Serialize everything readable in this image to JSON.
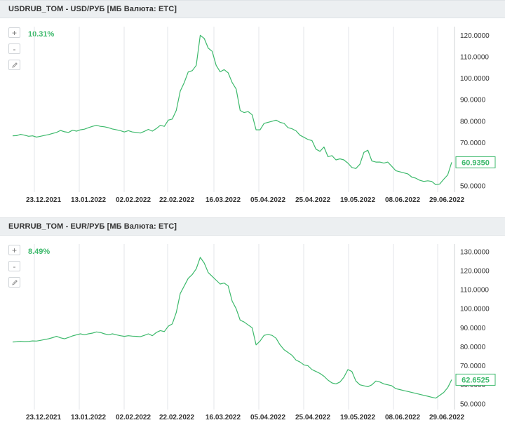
{
  "charts": [
    {
      "title": "USDRUB_TOM - USD/РУБ [МБ Валюта: ETC]",
      "change": "10.31%",
      "last_label": "60.9350",
      "controls": {
        "zoom_in": "+",
        "zoom_out": "-",
        "edit_icon": "pencil-icon"
      }
    },
    {
      "title": "EURRUB_TOM - EUR/РУБ [МБ Валюта: ETC]",
      "change": "8.49%",
      "last_label": "62.6525",
      "controls": {
        "zoom_in": "+",
        "zoom_out": "-",
        "edit_icon": "pencil-icon"
      }
    }
  ],
  "colors": {
    "line": "#3cb96b",
    "grid": "#e3e6e9",
    "axis_text": "#333333",
    "header_bg": "#eceff1"
  },
  "chart_data": [
    {
      "type": "line",
      "title": "USDRUB_TOM - USD/РУБ [МБ Валюта: ETC]",
      "xlabel": "",
      "ylabel": "",
      "ylim": [
        47,
        124
      ],
      "x_ticks": [
        "23.12.2021",
        "13.01.2022",
        "02.02.2022",
        "22.02.2022",
        "16.03.2022",
        "05.04.2022",
        "25.04.2022",
        "19.05.2022",
        "08.06.2022",
        "29.06.2022"
      ],
      "y_ticks": [
        "120.0000",
        "110.0000",
        "100.0000",
        "90.0000",
        "80.0000",
        "70.0000",
        "60.0000",
        "50.0000"
      ],
      "y_tick_values": [
        120,
        110,
        100,
        90,
        80,
        70,
        60,
        50
      ],
      "grid": true,
      "series": [
        {
          "values": [
            73.2,
            73.3,
            73.9,
            73.5,
            73.0,
            73.2,
            72.6,
            73.0,
            73.4,
            73.8,
            74.3,
            74.8,
            75.7,
            75.1,
            74.8,
            75.8,
            75.4,
            76.0,
            76.3,
            77.0,
            77.6,
            78.1,
            77.6,
            77.4,
            77.0,
            76.4,
            76.0,
            75.6,
            75.0,
            75.6,
            75.0,
            74.8,
            74.5,
            75.3,
            76.2,
            75.4,
            76.6,
            78.1,
            77.6,
            80.5,
            81.0,
            85.0,
            94.0,
            98.0,
            103.0,
            103.5,
            106.0,
            120.0,
            118.5,
            114.0,
            112.5,
            106.0,
            103.0,
            104.0,
            102.5,
            98.0,
            95.0,
            85.0,
            84.0,
            84.5,
            83.0,
            76.0,
            76.0,
            79.0,
            79.5,
            80.0,
            80.5,
            79.5,
            79.0,
            77.0,
            76.5,
            75.5,
            73.5,
            72.5,
            71.5,
            71.0,
            67.0,
            66.0,
            68.0,
            63.5,
            64.0,
            62.0,
            62.5,
            62.0,
            60.5,
            58.5,
            58.0,
            60.0,
            65.5,
            66.5,
            61.5,
            61.0,
            61.0,
            60.5,
            61.0,
            59.0,
            57.0,
            56.5,
            56.0,
            55.5,
            54.0,
            53.5,
            52.5,
            52.0,
            52.3,
            52.0,
            50.5,
            50.8,
            53.0,
            55.0,
            60.9
          ]
        }
      ]
    },
    {
      "type": "line",
      "title": "EURRUB_TOM - EUR/РУБ [МБ Валюта: ETC]",
      "xlabel": "",
      "ylabel": "",
      "ylim": [
        47,
        134
      ],
      "x_ticks": [
        "23.12.2021",
        "13.01.2022",
        "02.02.2022",
        "22.02.2022",
        "16.03.2022",
        "05.04.2022",
        "25.04.2022",
        "19.05.2022",
        "08.06.2022",
        "29.06.2022"
      ],
      "y_ticks": [
        "130.0000",
        "120.0000",
        "110.0000",
        "100.0000",
        "90.0000",
        "80.0000",
        "70.0000",
        "60.0000",
        "50.0000"
      ],
      "y_tick_values": [
        130,
        120,
        110,
        100,
        90,
        80,
        70,
        60,
        50
      ],
      "grid": true,
      "series": [
        {
          "values": [
            82.5,
            82.6,
            82.9,
            82.6,
            82.8,
            83.1,
            83.0,
            83.4,
            83.8,
            84.2,
            84.8,
            85.5,
            84.7,
            84.2,
            84.9,
            85.7,
            86.3,
            86.8,
            86.3,
            86.8,
            87.2,
            87.8,
            87.5,
            86.8,
            86.3,
            86.8,
            86.3,
            85.8,
            85.5,
            85.8,
            85.6,
            85.5,
            85.3,
            86.0,
            86.8,
            85.8,
            87.5,
            88.5,
            88.0,
            90.8,
            92.0,
            98.0,
            108.0,
            112.0,
            116.0,
            118.0,
            121.0,
            127.0,
            124.0,
            119.0,
            117.0,
            115.0,
            113.0,
            113.5,
            112.0,
            104.0,
            100.0,
            94.0,
            93.0,
            91.5,
            90.0,
            81.0,
            83.0,
            86.0,
            86.5,
            86.0,
            84.5,
            81.0,
            78.5,
            77.0,
            75.5,
            73.0,
            72.0,
            70.5,
            70.0,
            68.0,
            67.0,
            66.0,
            64.5,
            62.5,
            61.0,
            60.5,
            61.5,
            64.0,
            68.0,
            67.0,
            62.0,
            60.0,
            59.5,
            59.0,
            60.0,
            62.0,
            61.5,
            60.5,
            60.0,
            59.5,
            58.0,
            57.5,
            57.0,
            56.5,
            56.0,
            55.5,
            55.0,
            54.5,
            54.0,
            53.5,
            53.0,
            54.5,
            56.0,
            58.5,
            62.7
          ]
        }
      ]
    }
  ]
}
